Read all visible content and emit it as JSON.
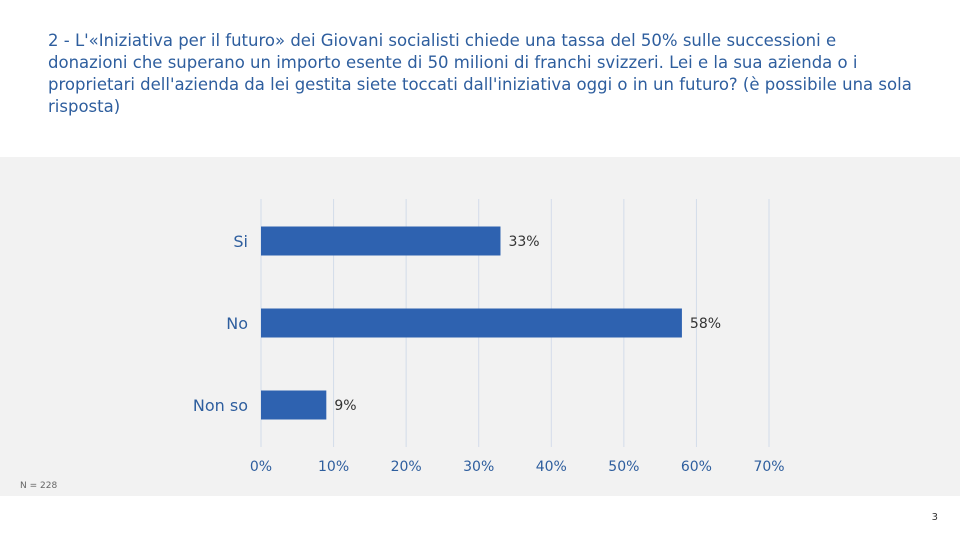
{
  "question": "2 - L'«Iniziativa per il futuro» dei Giovani socialisti chiede una tassa del 50% sulle successioni e donazioni che superano un importo esente di 50 milioni di franchi svizzeri. Lei e la sua azienda o i proprietari dell'azienda da lei gestita siete toccati dall'iniziativa oggi o in un futuro? (è possibile una sola risposta)",
  "sample_note": "N = 228",
  "page_number": "3",
  "chart_data": {
    "type": "bar",
    "orientation": "horizontal",
    "categories": [
      "Si",
      "No",
      "Non so"
    ],
    "values": [
      33,
      58,
      9
    ],
    "value_labels": [
      "33%",
      "58%",
      "9%"
    ],
    "xlim": [
      0,
      70
    ],
    "xticks": [
      0,
      10,
      20,
      30,
      40,
      50,
      60,
      70
    ],
    "xtick_labels": [
      "0%",
      "10%",
      "20%",
      "30%",
      "40%",
      "50%",
      "60%",
      "70%"
    ],
    "grid": "vertical",
    "legend": "none",
    "colors": {
      "bar": "#2E62B0",
      "grid": "#D3DCEA",
      "panel": "#F2F2F2",
      "text": "#2E5E9E"
    }
  }
}
